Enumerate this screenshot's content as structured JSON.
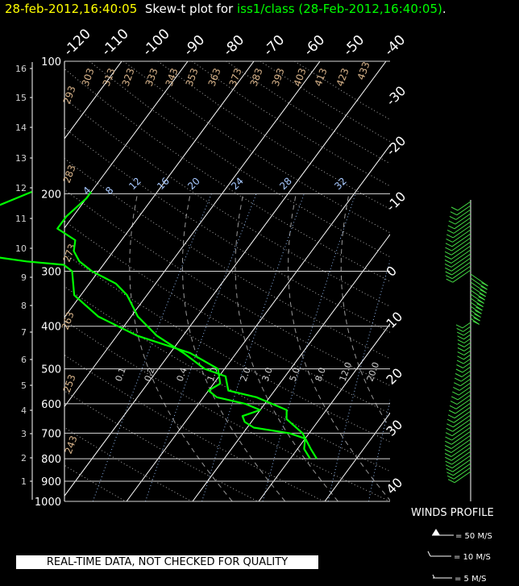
{
  "header": {
    "timestamp": "28-feb-2012,16:40:05",
    "plot_for": "Skew-t plot for",
    "station": "iss1/class (28-Feb-2012,16:40:05)",
    "period": "."
  },
  "note": "REAL-TIME DATA, NOT CHECKED FOR QUALITY",
  "winds": {
    "title": "WINDS PROFILE",
    "legend": [
      "= 50 M/S",
      "= 10 M/S",
      "= 5 M/S"
    ]
  },
  "colors": {
    "trace": "#00ff00",
    "barb": "#44dd44",
    "title_yellow": "#ffff00",
    "title_green": "#00ff00"
  },
  "chart_data": {
    "type": "line",
    "pressure_levels": [
      "100",
      "200",
      "300",
      "400",
      "500",
      "600",
      "700",
      "800",
      "900",
      "1000"
    ],
    "height_km": [
      "16",
      "15",
      "14",
      "13",
      "12",
      "11",
      "10",
      "9",
      "8",
      "7",
      "6",
      "5",
      "4",
      "3",
      "2",
      "1"
    ],
    "top_temps": [
      "-120",
      "-110",
      "-100",
      "-90",
      "-80",
      "-70",
      "-60",
      "-50",
      "-40"
    ],
    "right_temps": [
      "-30",
      "-20",
      "-10",
      "0",
      "10",
      "20",
      "30",
      "40"
    ],
    "dry_adiabats": [
      "293",
      "303",
      "313",
      "323",
      "333",
      "343",
      "353",
      "363",
      "373",
      "383",
      "393",
      "403",
      "413",
      "423",
      "433",
      "283",
      "273",
      "263",
      "253",
      "243"
    ],
    "mixing_ratio_upper": [
      "4",
      "8",
      "12",
      "16",
      "20",
      "24",
      "28",
      "32"
    ],
    "mixing_ratio_lower": [
      "0.1",
      "0.2",
      "0.4",
      "1.0",
      "2.0",
      "3.0",
      "5.0",
      "8.0",
      "12.0",
      "20.0"
    ],
    "series": [
      {
        "name": "temperature",
        "points": [
          [
            800,
            4
          ],
          [
            760,
            2
          ],
          [
            700,
            -1
          ],
          [
            650,
            -5
          ],
          [
            620,
            -6
          ],
          [
            580,
            -12
          ],
          [
            560,
            -17
          ],
          [
            520,
            -19
          ],
          [
            500,
            -23
          ],
          [
            460,
            -28
          ],
          [
            420,
            -34
          ],
          [
            380,
            -39
          ],
          [
            340,
            -43
          ],
          [
            320,
            -46
          ],
          [
            300,
            -51
          ],
          [
            285,
            -54
          ],
          [
            270,
            -56
          ],
          [
            255,
            -57
          ],
          [
            240,
            -61
          ],
          [
            225,
            -61
          ],
          [
            205,
            -60
          ],
          [
            198,
            -60
          ]
        ]
      },
      {
        "name": "dewpoint",
        "points": [
          [
            800,
            3
          ],
          [
            760,
            1
          ],
          [
            720,
            0
          ],
          [
            700,
            -3
          ],
          [
            680,
            -9
          ],
          [
            660,
            -11
          ],
          [
            640,
            -12
          ],
          [
            620,
            -10
          ],
          [
            600,
            -13
          ],
          [
            580,
            -18
          ],
          [
            560,
            -20
          ],
          [
            540,
            -19
          ],
          [
            500,
            -21
          ],
          [
            460,
            -27
          ],
          [
            420,
            -37
          ],
          [
            380,
            -45
          ],
          [
            340,
            -51
          ],
          [
            300,
            -54
          ],
          [
            290,
            -56
          ],
          [
            285,
            -62
          ],
          [
            280,
            -66
          ],
          [
            270,
            -74
          ],
          [
            255,
            -73
          ],
          [
            235,
            -75
          ],
          [
            215,
            -73
          ],
          [
            198,
            -69
          ]
        ]
      }
    ],
    "pmin": 100,
    "pmax": 1000,
    "grid": true
  }
}
